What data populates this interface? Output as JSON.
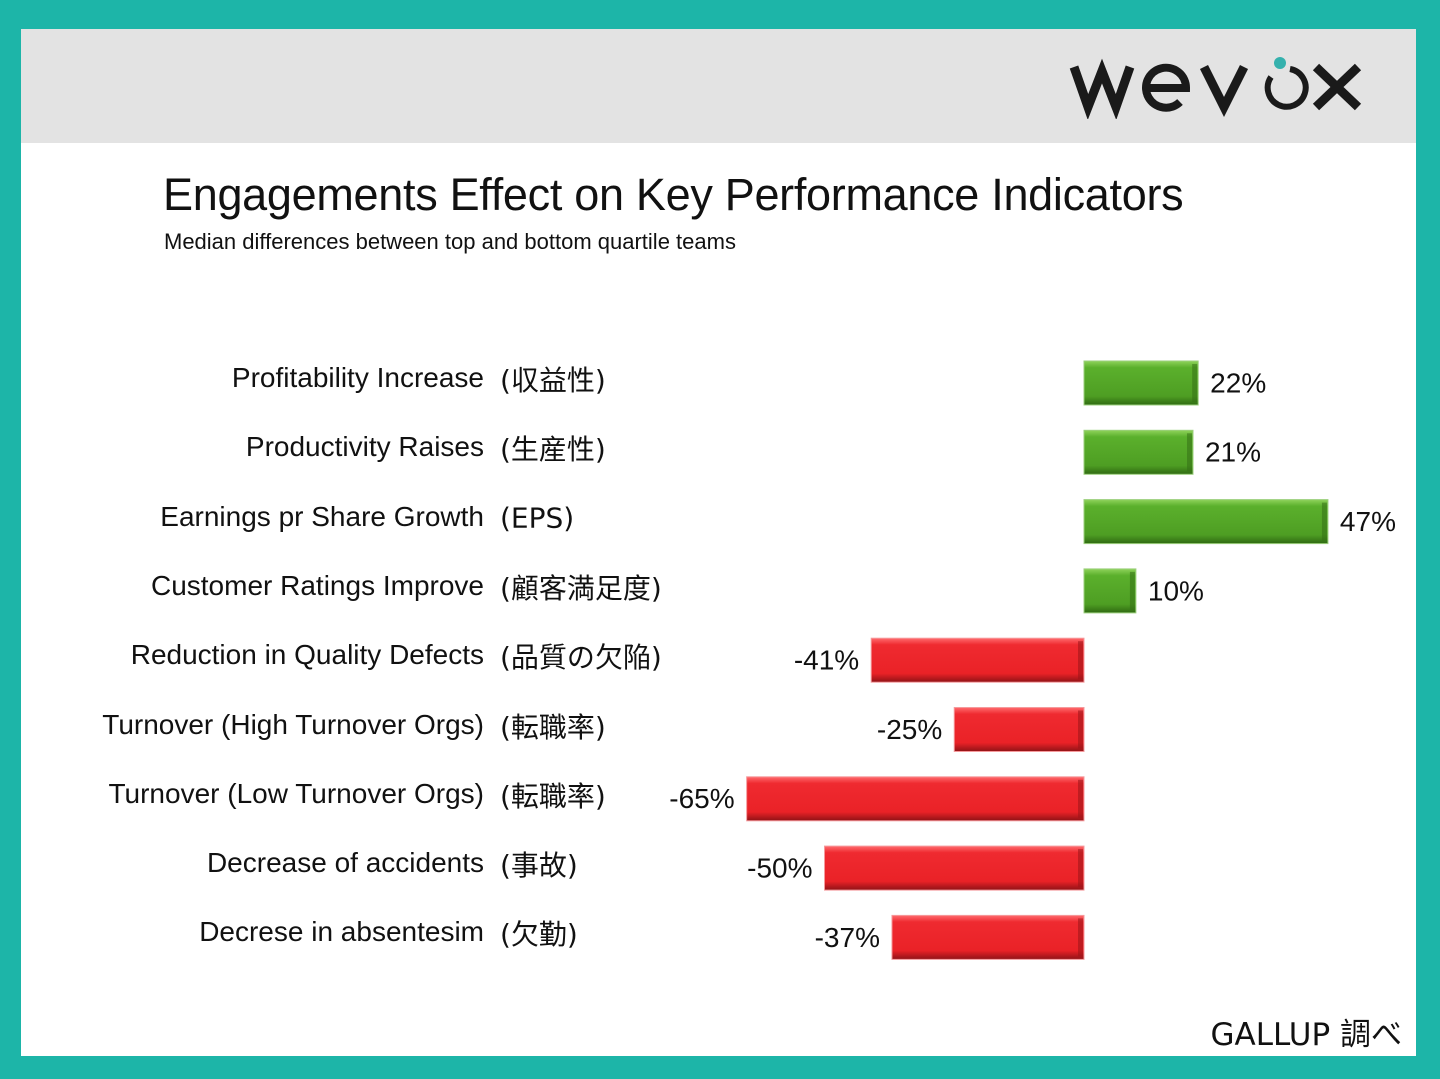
{
  "brand": {
    "logo_text": "wevox",
    "frame_color": "#1db5a8",
    "logo_dot_color": "#35b1ad"
  },
  "header": {
    "title": "Engagements Effect on Key Performance Indicators",
    "subtitle": "Median differences between top and bottom quartile teams"
  },
  "footer": {
    "source": "GALLUP 調べ"
  },
  "chart_data": {
    "type": "bar",
    "orientation": "horizontal",
    "title": "Engagements Effect on Key Performance Indicators",
    "subtitle": "Median differences between top and bottom quartile teams",
    "xlabel": "",
    "ylabel": "",
    "unit": "%",
    "grid": false,
    "legend": "none",
    "xlim": [
      -65,
      47
    ],
    "positive_color": "#4e9e23",
    "negative_color": "#ed2228",
    "categories": [
      "Profitability Increase",
      "Productivity Raises",
      "Earnings pr Share Growth",
      "Customer Ratings Improve",
      "Reduction in Quality Defects",
      "Turnover (High Turnover Orgs)",
      "Turnover (Low Turnover Orgs)",
      "Decrease of accidents",
      "Decrese in absentesim"
    ],
    "categories_jp": [
      "(収益性)",
      "(生産性)",
      "(EPS)",
      "(顧客満足度)",
      "(品質の欠陥)",
      "(転職率)",
      "(転職率)",
      "(事故)",
      "(欠勤)"
    ],
    "values": [
      22,
      21,
      47,
      10,
      -41,
      -25,
      -65,
      -50,
      -37
    ],
    "data_labels": [
      "22%",
      "21%",
      "47%",
      "10%",
      "-41%",
      "-25%",
      "-65%",
      "-50%",
      "-37%"
    ],
    "source": "GALLUP 調べ"
  }
}
